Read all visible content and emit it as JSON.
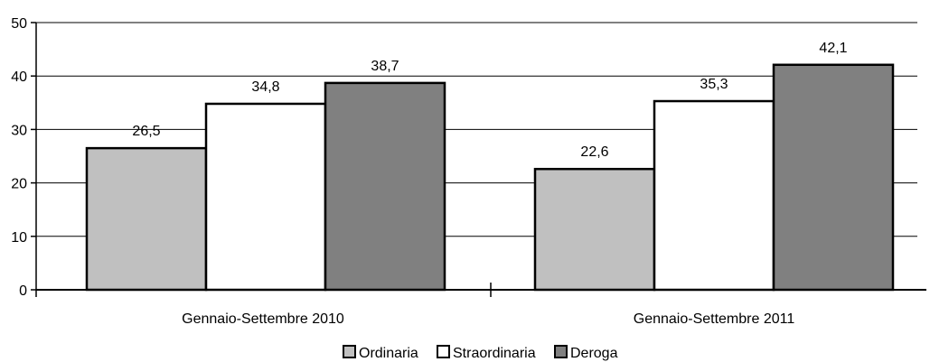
{
  "chart_data": {
    "type": "bar",
    "categories": [
      "Gennaio-Settembre 2010",
      "Gennaio-Settembre 2011"
    ],
    "series": [
      {
        "name": "Ordinaria",
        "values": [
          26.5,
          22.6
        ],
        "color": "#c0c0c0",
        "labels": [
          "26,5",
          "22,6"
        ]
      },
      {
        "name": "Straordinaria",
        "values": [
          34.8,
          35.3
        ],
        "color": "#ffffff",
        "labels": [
          "34,8",
          "35,3"
        ]
      },
      {
        "name": "Deroga",
        "values": [
          38.7,
          42.1
        ],
        "color": "#808080",
        "labels": [
          "38,7",
          "42,1"
        ]
      }
    ],
    "yticks": [
      "0",
      "10",
      "20",
      "30",
      "40",
      "50"
    ],
    "ylim": [
      0,
      50
    ],
    "grid": true,
    "legend_position": "bottom"
  }
}
